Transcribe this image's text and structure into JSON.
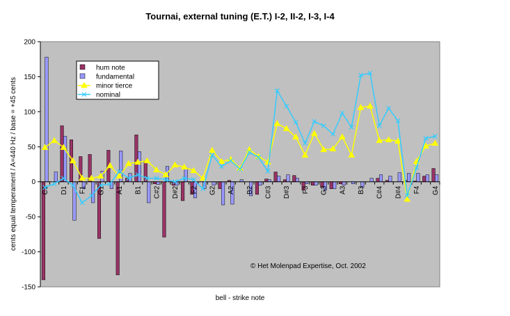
{
  "chart_data": {
    "type": "bar_line",
    "title": "Tournai, external tuning (E.T.) I-2, II-2, I-3, I-4",
    "y_label": "cents equal temperament / A=440 Hz / base = +45 cents",
    "x_label": "bell - strike note",
    "annotation": "© Het Molenpad Expertise, Oct. 2002",
    "categories": [
      "C1",
      null,
      "D1",
      null,
      "F1",
      null,
      "G1",
      null,
      "A1",
      null,
      "B1",
      null,
      "C#2",
      null,
      "D#2",
      null,
      "F2",
      null,
      "G2",
      null,
      "A2",
      null,
      "B2",
      null,
      "C#3",
      null,
      "D#3",
      null,
      "F3",
      null,
      "G3",
      null,
      "A3",
      null,
      "B3",
      null,
      "C#4",
      null,
      "D#4",
      null,
      "F4",
      null,
      "G4"
    ],
    "series": [
      {
        "name": "hum note",
        "kind": "bar",
        "color": "#993366",
        "values": [
          -140,
          0,
          80,
          60,
          36,
          39,
          -81,
          45,
          -133,
          5,
          67,
          30,
          -3,
          -79,
          -5,
          -27,
          -18,
          0,
          0,
          -10,
          2,
          0,
          0,
          -18,
          4,
          14,
          3,
          9,
          -12,
          -5,
          -8,
          -10,
          -3,
          0,
          0,
          0,
          5,
          2,
          0,
          2,
          1,
          8,
          19
        ]
      },
      {
        "name": "fundamental",
        "kind": "bar",
        "color": "#9999ff",
        "values": [
          178,
          14,
          65,
          -55,
          -10,
          -30,
          15,
          -10,
          44,
          12,
          43,
          -30,
          -4,
          22,
          -5,
          20,
          -23,
          -10,
          -5,
          -33,
          -32,
          3,
          -20,
          -5,
          3,
          8,
          10,
          5,
          -3,
          -5,
          -12,
          -10,
          -5,
          -3,
          -8,
          5,
          10,
          8,
          13,
          12,
          12,
          10,
          10
        ]
      },
      {
        "name": "minor tierce",
        "kind": "line",
        "marker": "triangle",
        "color": "#ffff00",
        "values": [
          49,
          59,
          49,
          30,
          5,
          5,
          8,
          23,
          8,
          26,
          28,
          30,
          17,
          10,
          24,
          21,
          16,
          5,
          45,
          29,
          32,
          19,
          46,
          36,
          28,
          83,
          76,
          64,
          38,
          69,
          46,
          47,
          64,
          38,
          106,
          108,
          59,
          60,
          58,
          -25,
          29,
          51,
          55
        ]
      },
      {
        "name": "nominal",
        "kind": "line",
        "marker": "x",
        "color": "#33ccff",
        "values": [
          -8,
          -3,
          5,
          -5,
          -30,
          -20,
          -5,
          -3,
          15,
          5,
          10,
          5,
          5,
          3,
          0,
          5,
          3,
          -10,
          38,
          22,
          30,
          18,
          42,
          35,
          15,
          130,
          108,
          85,
          55,
          86,
          80,
          68,
          98,
          78,
          152,
          155,
          80,
          105,
          87,
          -20,
          20,
          62,
          65
        ]
      }
    ],
    "ylim": [
      -150,
      200
    ],
    "yticks": [
      -150,
      -100,
      -50,
      0,
      50,
      100,
      150,
      200
    ],
    "grid": false,
    "legend": "upper left",
    "plot_background": "#c0c0c0"
  }
}
